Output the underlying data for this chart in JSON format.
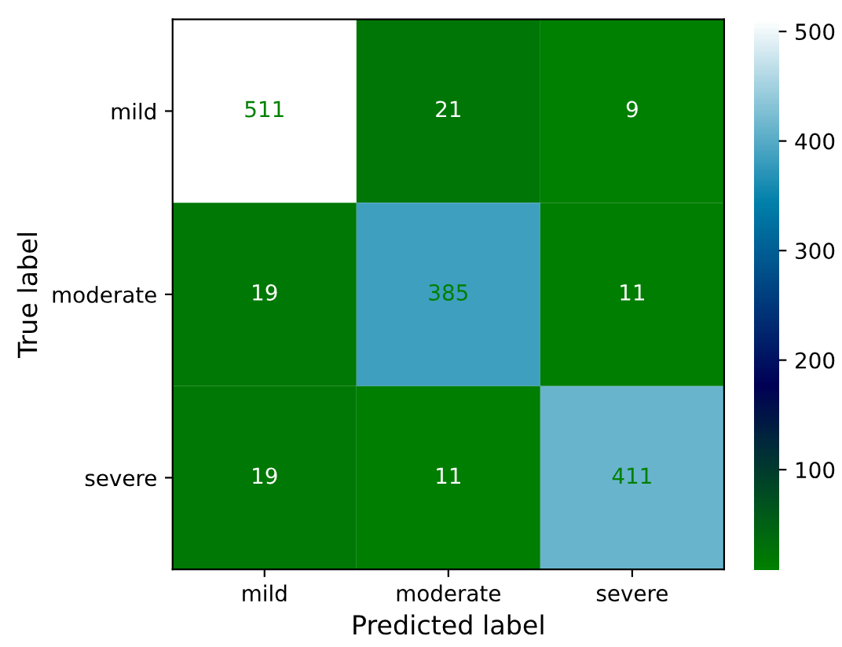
{
  "chart_data": {
    "type": "heatmap",
    "xlabel": "Predicted label",
    "ylabel": "True label",
    "categories": [
      "mild",
      "moderate",
      "severe"
    ],
    "y_categories": [
      "mild",
      "moderate",
      "severe"
    ],
    "cells": [
      [
        511,
        21,
        9
      ],
      [
        19,
        385,
        11
      ],
      [
        19,
        11,
        411
      ]
    ],
    "data_labels": true,
    "clim": [
      9,
      511
    ],
    "cticks": [
      100,
      200,
      300,
      400,
      500
    ],
    "grid": false
  }
}
